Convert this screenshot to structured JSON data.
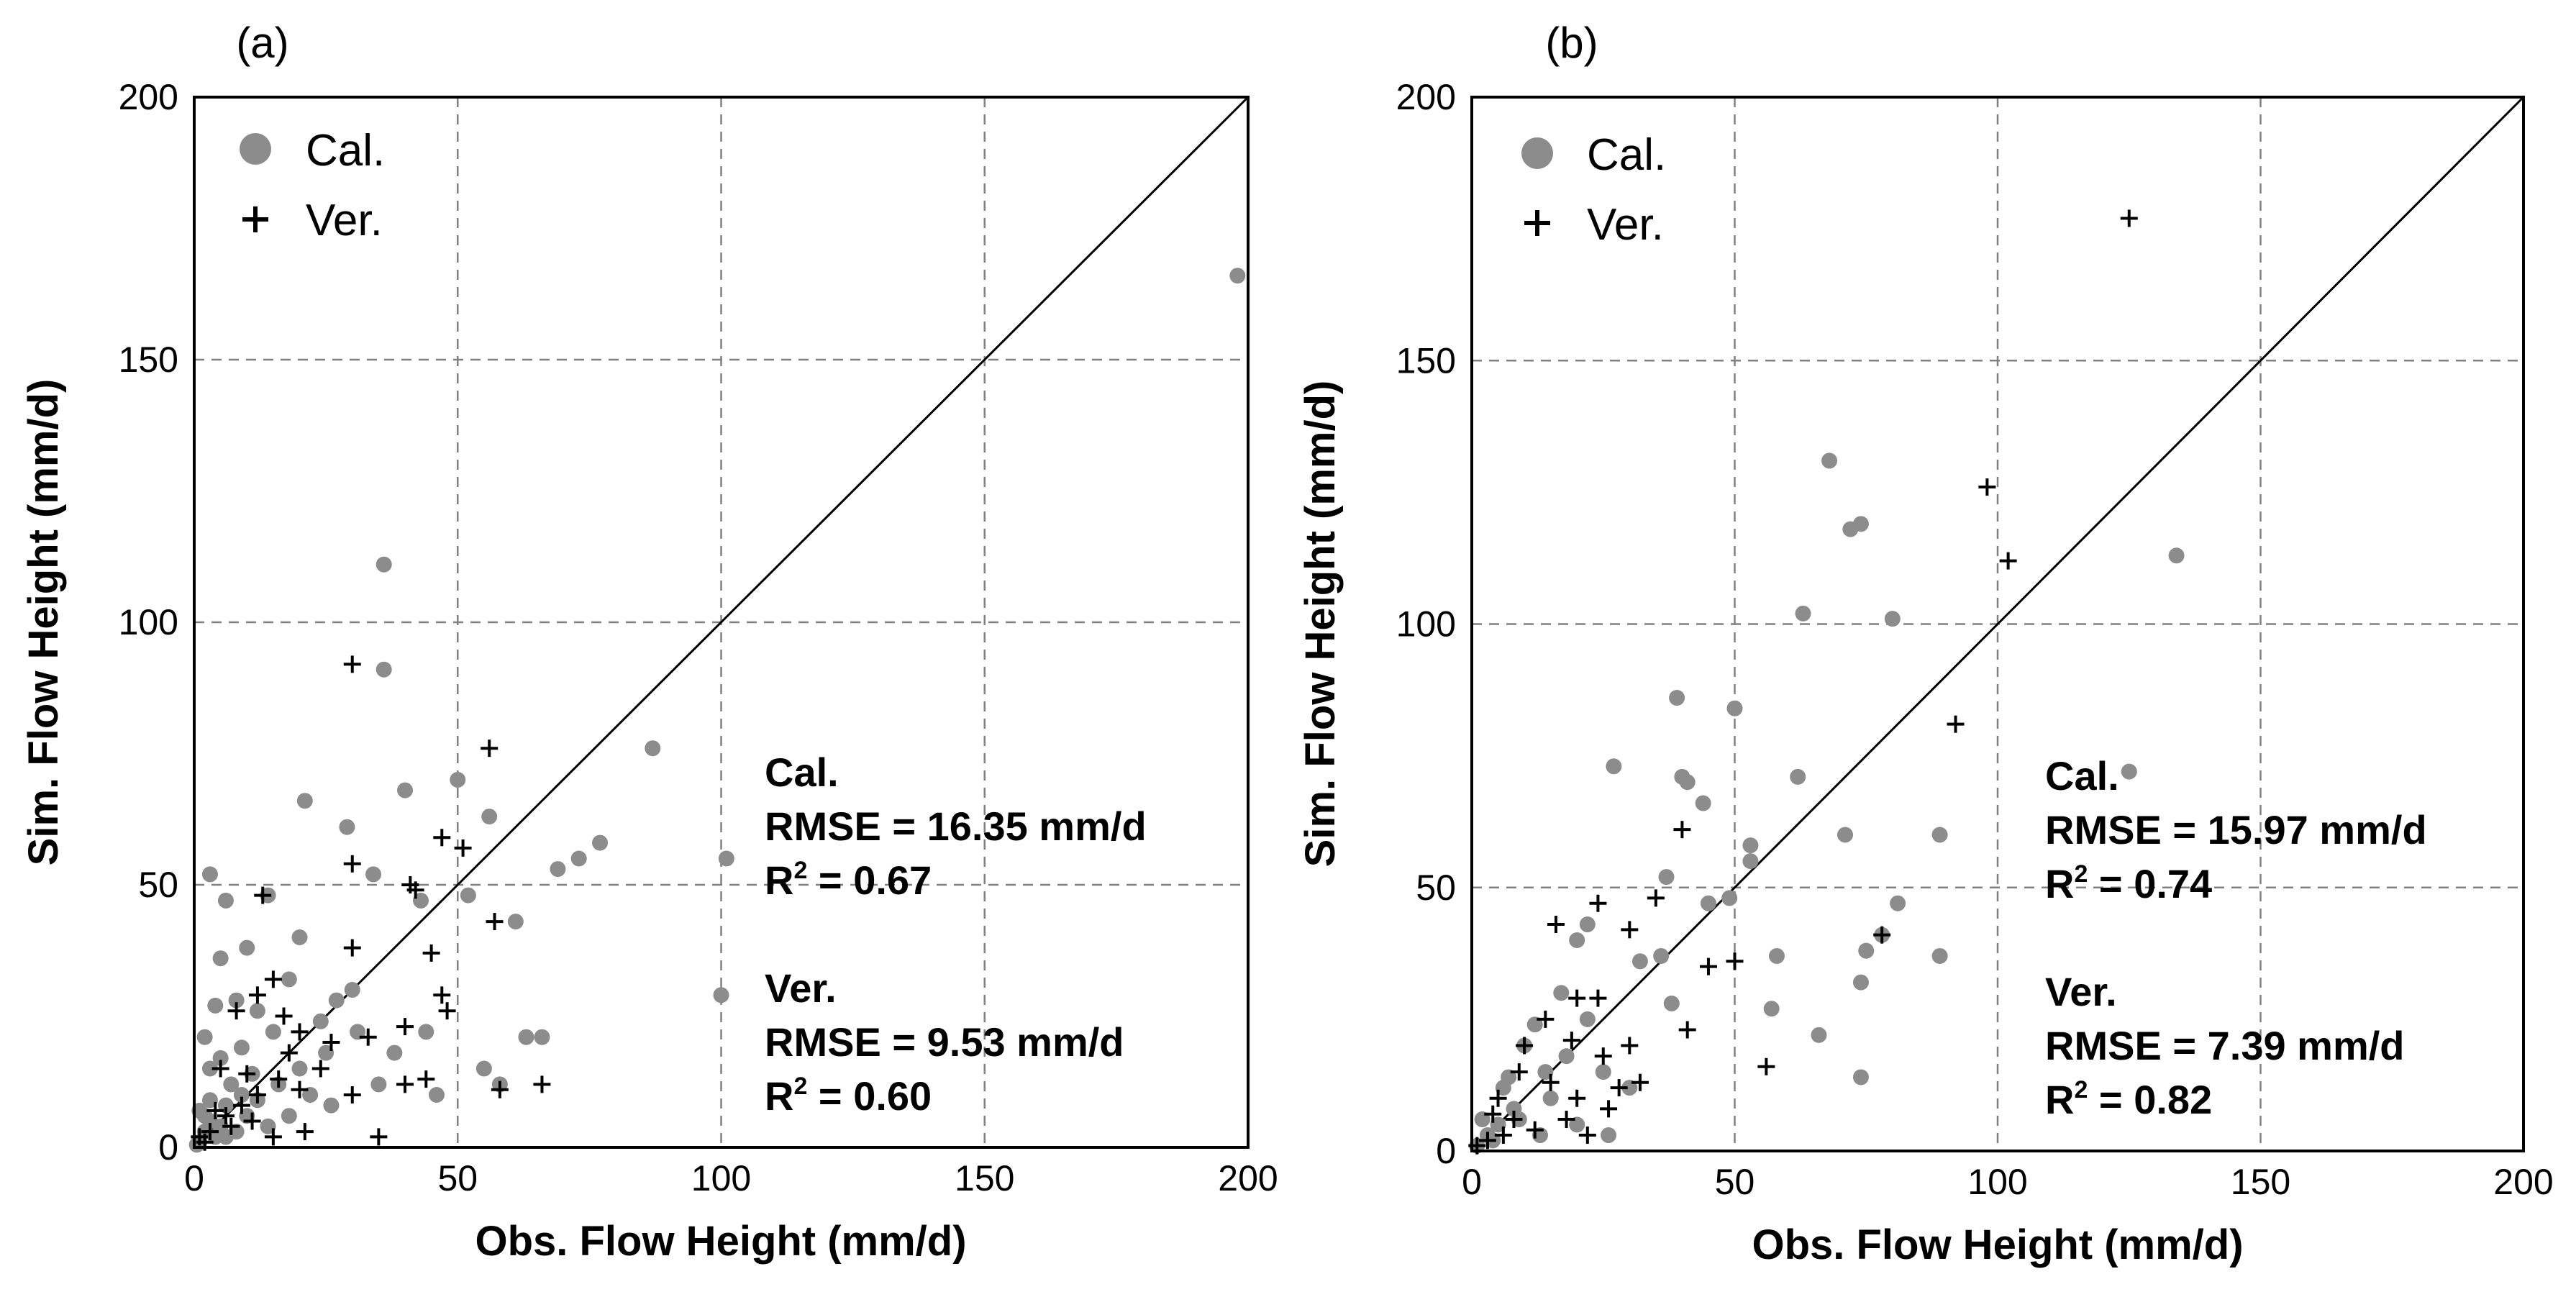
{
  "chart_data": [
    {
      "type": "scatter",
      "panel_label": "(a)",
      "xlabel": "Obs. Flow Height (mm/d)",
      "ylabel": "Sim. Flow Height (mm/d)",
      "xlim": [
        0,
        200
      ],
      "ylim": [
        0,
        200
      ],
      "xticks": [
        "0",
        "50",
        "100",
        "150",
        "200"
      ],
      "yticks": [
        "0",
        "50",
        "100",
        "150",
        "200"
      ],
      "grid": true,
      "one_to_one_line": true,
      "legend": [
        {
          "label": "Cal.",
          "marker": "circle",
          "color": "#8c8c8c"
        },
        {
          "label": "Ver.",
          "marker": "plus",
          "color": "#000000"
        }
      ],
      "stats": {
        "cal": {
          "title": "Cal.",
          "rmse": "RMSE = 16.35 mm/d",
          "r2_prefix": "R",
          "r2_sup": "2",
          "r2_value": " = 0.67"
        },
        "ver": {
          "title": "Ver.",
          "rmse": "RMSE = 9.53 mm/d",
          "r2_prefix": "R",
          "r2_sup": "2",
          "r2_value": " = 0.60"
        }
      },
      "series": [
        {
          "name": "Cal.",
          "marker": "circle",
          "color": "#8c8c8c",
          "points": [
            [
              198,
              166
            ],
            [
              36,
              111
            ],
            [
              36,
              91
            ],
            [
              87,
              76
            ],
            [
              50,
              70
            ],
            [
              40,
              68
            ],
            [
              21,
              66
            ],
            [
              29,
              61
            ],
            [
              56,
              63
            ],
            [
              101,
              55
            ],
            [
              77,
              58
            ],
            [
              73,
              55
            ],
            [
              69,
              53
            ],
            [
              34,
              52
            ],
            [
              52,
              48
            ],
            [
              61,
              43
            ],
            [
              43,
              47
            ],
            [
              3,
              52
            ],
            [
              6,
              47
            ],
            [
              14,
              48
            ],
            [
              10,
              38
            ],
            [
              20,
              40
            ],
            [
              5,
              36
            ],
            [
              18,
              32
            ],
            [
              30,
              30
            ],
            [
              8,
              28
            ],
            [
              12,
              26
            ],
            [
              4,
              27
            ],
            [
              15,
              22
            ],
            [
              27,
              28
            ],
            [
              9,
              19
            ],
            [
              2,
              21
            ],
            [
              3,
              15
            ],
            [
              20,
              15
            ],
            [
              25,
              18
            ],
            [
              38,
              18
            ],
            [
              44,
              22
            ],
            [
              63,
              21
            ],
            [
              66,
              21
            ],
            [
              55,
              15
            ],
            [
              58,
              12
            ],
            [
              100,
              29
            ],
            [
              46,
              10
            ],
            [
              16,
              12
            ],
            [
              22,
              10
            ],
            [
              35,
              12
            ],
            [
              3,
              9
            ],
            [
              6,
              8
            ],
            [
              10,
              6
            ],
            [
              12,
              9
            ],
            [
              5,
              4
            ],
            [
              2,
              3
            ],
            [
              1,
              1
            ],
            [
              4,
              2
            ],
            [
              8,
              3
            ],
            [
              0.5,
              0.5
            ],
            [
              7,
              12
            ],
            [
              11,
              14
            ],
            [
              18,
              6
            ],
            [
              26,
              8
            ],
            [
              31,
              22
            ],
            [
              24,
              24
            ],
            [
              2,
              6
            ],
            [
              14,
              4
            ],
            [
              9,
              10
            ],
            [
              3,
              5
            ],
            [
              6,
              2
            ],
            [
              1,
              7
            ],
            [
              5,
              17
            ]
          ]
        },
        {
          "name": "Ver.",
          "marker": "plus",
          "color": "#000000",
          "points": [
            [
              30,
              92
            ],
            [
              56,
              76
            ],
            [
              47,
              59
            ],
            [
              51,
              57
            ],
            [
              30,
              54
            ],
            [
              41,
              50
            ],
            [
              42,
              49
            ],
            [
              57,
              43
            ],
            [
              13,
              48
            ],
            [
              30,
              38
            ],
            [
              45,
              37
            ],
            [
              47,
              29
            ],
            [
              48,
              26
            ],
            [
              17,
              25
            ],
            [
              40,
              23
            ],
            [
              12,
              29
            ],
            [
              20,
              22
            ],
            [
              8,
              26
            ],
            [
              15,
              32
            ],
            [
              5,
              15
            ],
            [
              10,
              14
            ],
            [
              20,
              11
            ],
            [
              30,
              10
            ],
            [
              40,
              12
            ],
            [
              44,
              13
            ],
            [
              58,
              11
            ],
            [
              66,
              12
            ],
            [
              35,
              2
            ],
            [
              15,
              2
            ],
            [
              3,
              3
            ],
            [
              6,
              6
            ],
            [
              9,
              8
            ],
            [
              12,
              10
            ],
            [
              16,
              13
            ],
            [
              24,
              15
            ],
            [
              2,
              1
            ],
            [
              4,
              7
            ],
            [
              7,
              4
            ],
            [
              1,
              2
            ],
            [
              18,
              18
            ],
            [
              26,
              20
            ],
            [
              33,
              21
            ],
            [
              11,
              5
            ],
            [
              21,
              3
            ]
          ]
        }
      ]
    },
    {
      "type": "scatter",
      "panel_label": "(b)",
      "xlabel": "Obs. Flow Height (mm/d)",
      "ylabel": "Sim. Flow Height (mm/d)",
      "xlim": [
        0,
        200
      ],
      "ylim": [
        0,
        200
      ],
      "xticks": [
        "0",
        "50",
        "100",
        "150",
        "200"
      ],
      "yticks": [
        "0",
        "50",
        "100",
        "150",
        "200"
      ],
      "grid": true,
      "one_to_one_line": true,
      "legend": [
        {
          "label": "Cal.",
          "marker": "circle",
          "color": "#8c8c8c"
        },
        {
          "label": "Ver.",
          "marker": "plus",
          "color": "#000000"
        }
      ],
      "stats": {
        "cal": {
          "title": "Cal.",
          "rmse": "RMSE = 15.97 mm/d",
          "r2_prefix": "R",
          "r2_sup": "2",
          "r2_value": " = 0.74"
        },
        "ver": {
          "title": "Ver.",
          "rmse": "RMSE = 7.39 mm/d",
          "r2_prefix": "R",
          "r2_sup": "2",
          "r2_value": " = 0.82"
        }
      },
      "series": [
        {
          "name": "Cal.",
          "marker": "circle",
          "color": "#8c8c8c",
          "points": [
            [
              68,
              131
            ],
            [
              72,
              118
            ],
            [
              74,
              119
            ],
            [
              134,
              113
            ],
            [
              63,
              102
            ],
            [
              80,
              101
            ],
            [
              39,
              86
            ],
            [
              50,
              84
            ],
            [
              27,
              73
            ],
            [
              40,
              71
            ],
            [
              41,
              70
            ],
            [
              62,
              71
            ],
            [
              125,
              72
            ],
            [
              44,
              66
            ],
            [
              53,
              58
            ],
            [
              53,
              55
            ],
            [
              71,
              60
            ],
            [
              89,
              60
            ],
            [
              49,
              48
            ],
            [
              45,
              47
            ],
            [
              81,
              47
            ],
            [
              78,
              41
            ],
            [
              75,
              38
            ],
            [
              58,
              37
            ],
            [
              89,
              37
            ],
            [
              74,
              32
            ],
            [
              66,
              22
            ],
            [
              32,
              36
            ],
            [
              36,
              37
            ],
            [
              22,
              43
            ],
            [
              37,
              52
            ],
            [
              57,
              27
            ],
            [
              38,
              28
            ],
            [
              74,
              14
            ],
            [
              20,
              40
            ],
            [
              17,
              30
            ],
            [
              10,
              20
            ],
            [
              12,
              24
            ],
            [
              15,
              10
            ],
            [
              25,
              15
            ],
            [
              30,
              12
            ],
            [
              8,
              8
            ],
            [
              5,
              5
            ],
            [
              3,
              3
            ],
            [
              1,
              1
            ],
            [
              6,
              12
            ],
            [
              9,
              6
            ],
            [
              13,
              3
            ],
            [
              20,
              5
            ],
            [
              26,
              3
            ],
            [
              18,
              18
            ],
            [
              4,
              2
            ],
            [
              2,
              6
            ],
            [
              7,
              14
            ],
            [
              22,
              25
            ],
            [
              14,
              15
            ]
          ]
        },
        {
          "name": "Ver.",
          "marker": "plus",
          "color": "#000000",
          "points": [
            [
              125,
              177
            ],
            [
              98,
              126
            ],
            [
              102,
              112
            ],
            [
              92,
              81
            ],
            [
              35,
              48
            ],
            [
              16,
              43
            ],
            [
              24,
              47
            ],
            [
              30,
              42
            ],
            [
              40,
              61
            ],
            [
              41,
              23
            ],
            [
              45,
              35
            ],
            [
              50,
              36
            ],
            [
              56,
              16
            ],
            [
              78,
              41
            ],
            [
              20,
              29
            ],
            [
              24,
              29
            ],
            [
              19,
              21
            ],
            [
              30,
              20
            ],
            [
              10,
              20
            ],
            [
              15,
              13
            ],
            [
              20,
              10
            ],
            [
              25,
              18
            ],
            [
              28,
              12
            ],
            [
              32,
              13
            ],
            [
              5,
              10
            ],
            [
              8,
              6
            ],
            [
              12,
              4
            ],
            [
              3,
              2
            ],
            [
              6,
              3
            ],
            [
              1,
              1
            ],
            [
              18,
              6
            ],
            [
              22,
              3
            ],
            [
              26,
              8
            ],
            [
              4,
              7
            ],
            [
              9,
              15
            ],
            [
              14,
              25
            ]
          ]
        }
      ]
    }
  ]
}
